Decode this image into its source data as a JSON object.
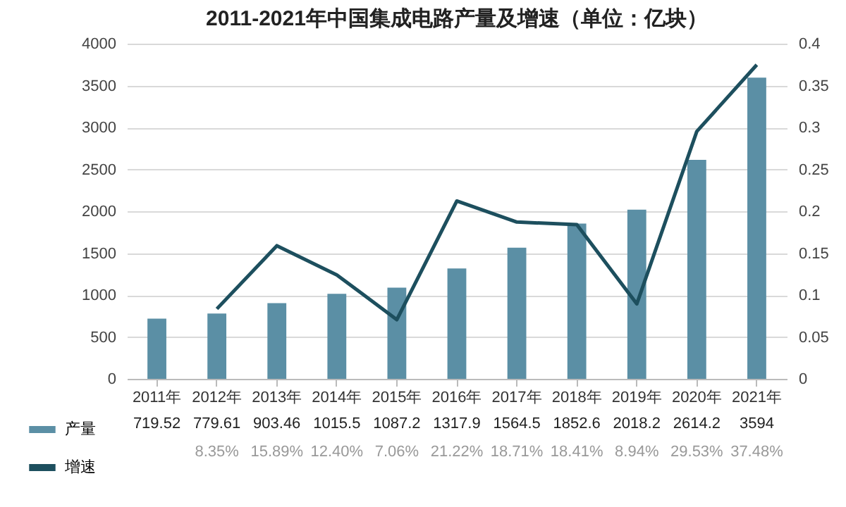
{
  "chart_data": {
    "type": "bar",
    "title": "2011-2021年中国集成电路产量及增速（单位：亿块）",
    "categories": [
      "2011年",
      "2012年",
      "2013年",
      "2014年",
      "2015年",
      "2016年",
      "2017年",
      "2018年",
      "2019年",
      "2020年",
      "2021年"
    ],
    "series": [
      {
        "name": "产量",
        "color": "#5b8fa5",
        "values": [
          719.52,
          779.61,
          903.46,
          1015.5,
          1087.2,
          1317.9,
          1564.5,
          1852.6,
          2018.2,
          2614.2,
          3594
        ]
      },
      {
        "name": "增速",
        "type": "line",
        "axis": "y2",
        "color": "#1d4f5e",
        "values": [
          null,
          0.0835,
          0.1589,
          0.124,
          0.0706,
          0.2122,
          0.1871,
          0.1841,
          0.0894,
          0.2953,
          0.3748
        ],
        "value_labels": [
          null,
          "8.35%",
          "15.89%",
          "12.40%",
          "7.06%",
          "21.22%",
          "18.71%",
          "18.41%",
          "8.94%",
          "29.53%",
          "37.48%"
        ]
      }
    ],
    "data_labels": true,
    "ylim": [
      0,
      4000
    ],
    "yticks": [
      0,
      500,
      1000,
      1500,
      2000,
      2500,
      3000,
      3500,
      4000
    ],
    "y2lim": [
      0,
      0.4
    ],
    "y2ticks": [
      0,
      0.05,
      0.1,
      0.15,
      0.2,
      0.25,
      0.3,
      0.35,
      0.4
    ],
    "grid": "y",
    "legend": "bottom left",
    "marker": "none",
    "line_style": "solid"
  }
}
